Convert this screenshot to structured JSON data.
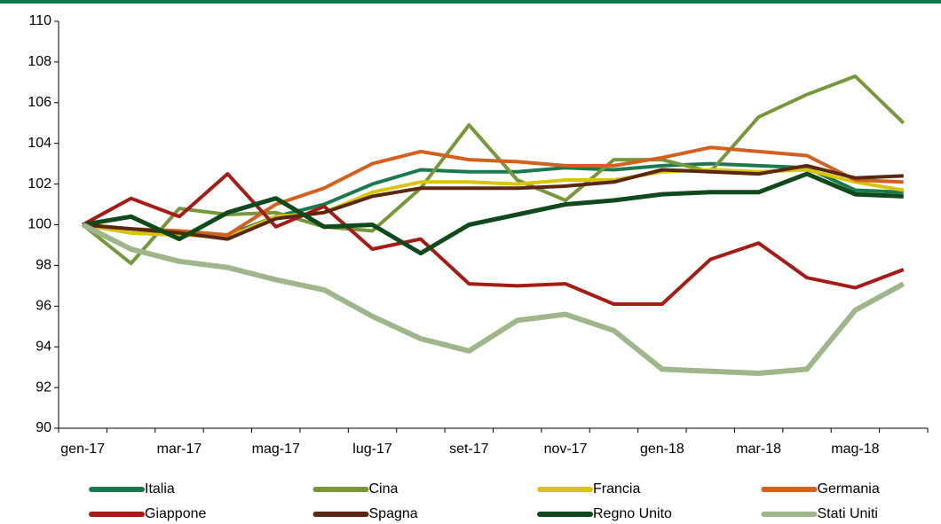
{
  "chart_data": {
    "type": "line",
    "categories": [
      "gen-17",
      null,
      "mar-17",
      null,
      "mag-17",
      null,
      "lug-17",
      null,
      "set-17",
      null,
      "nov-17",
      null,
      "gen-18",
      null,
      "mar-18",
      null,
      "mag-18",
      null
    ],
    "series": [
      {
        "name": "Italia",
        "color": "#1b7a4d",
        "values": [
          100,
          99.6,
          99.5,
          99.5,
          100.4,
          101,
          102,
          102.7,
          102.6,
          102.6,
          102.8,
          102.7,
          102.9,
          103,
          102.9,
          102.8,
          101.7,
          101.6
        ]
      },
      {
        "name": "Cina",
        "color": "#76973a",
        "values": [
          100,
          98.1,
          100.8,
          100.5,
          100.6,
          99.9,
          99.7,
          101.8,
          104.9,
          102.2,
          101.2,
          103.2,
          103.2,
          102.6,
          105.3,
          106.4,
          107.3,
          105
        ]
      },
      {
        "name": "Francia",
        "color": "#d8c50a",
        "values": [
          100,
          99.6,
          99.5,
          99.4,
          100.4,
          100.6,
          101.6,
          102.1,
          102.1,
          102,
          102.2,
          102.2,
          102.6,
          102.7,
          102.6,
          102.7,
          102.1,
          101.7
        ]
      },
      {
        "name": "Germania",
        "color": "#d4601e",
        "values": [
          100,
          99.8,
          99.7,
          99.5,
          101,
          101.8,
          103,
          103.6,
          103.2,
          103.1,
          102.9,
          102.9,
          103.3,
          103.8,
          103.6,
          103.4,
          102.2,
          102.1
        ]
      },
      {
        "name": "Giappone",
        "color": "#a51c16",
        "values": [
          100,
          101.3,
          100.4,
          102.5,
          99.9,
          100.9,
          98.8,
          99.3,
          97.1,
          97,
          97.1,
          96.1,
          96.1,
          98.3,
          99.1,
          97.4,
          96.9,
          97.8
        ]
      },
      {
        "name": "Spagna",
        "color": "#5a2810",
        "values": [
          100,
          99.8,
          99.6,
          99.3,
          100.3,
          100.6,
          101.4,
          101.8,
          101.8,
          101.8,
          101.9,
          102.1,
          102.7,
          102.6,
          102.5,
          102.9,
          102.3,
          102.4
        ]
      },
      {
        "name": "Regno Unito",
        "color": "#0e4a1c",
        "values": [
          100,
          100.4,
          99.3,
          100.6,
          101.3,
          99.9,
          100,
          98.6,
          100,
          100.5,
          101,
          101.2,
          101.5,
          101.6,
          101.6,
          102.5,
          101.5,
          101.4
        ]
      },
      {
        "name": "Stati Uniti",
        "color": "#9fb58a",
        "values": [
          100,
          98.8,
          98.2,
          97.9,
          97.3,
          96.8,
          95.5,
          94.4,
          93.8,
          95.3,
          95.6,
          94.8,
          92.9,
          92.8,
          92.7,
          92.9,
          95.8,
          97.1
        ]
      }
    ],
    "ylim": [
      90,
      110
    ],
    "yticks": [
      90,
      92,
      94,
      96,
      98,
      100,
      102,
      104,
      106,
      108,
      110
    ],
    "grid": false,
    "legend": "bottom"
  }
}
